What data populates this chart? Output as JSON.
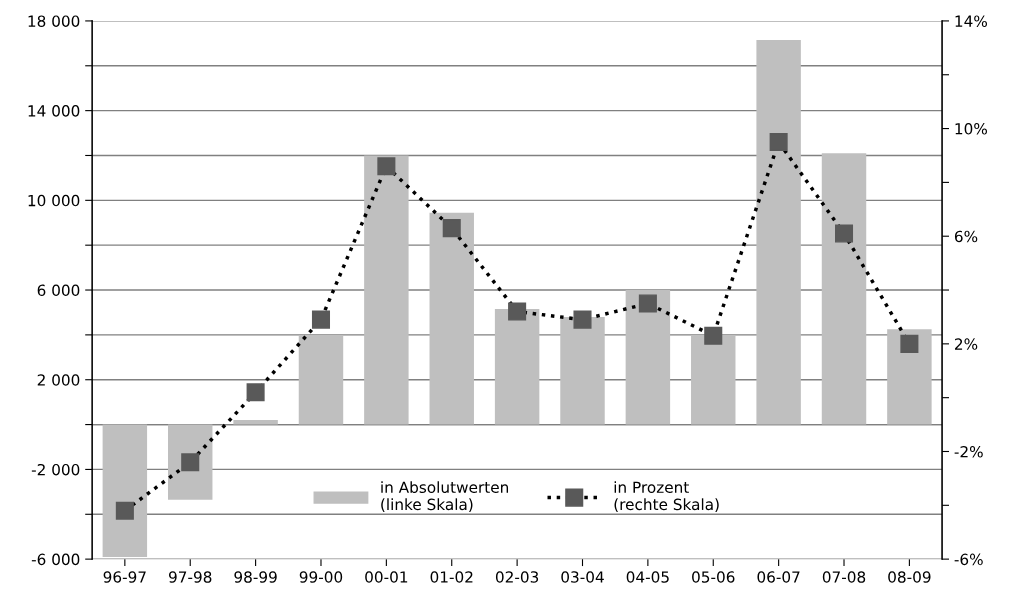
{
  "chart_data": {
    "type": "bar",
    "categories": [
      "96-97",
      "97-98",
      "98-99",
      "99-00",
      "00-01",
      "01-02",
      "02-03",
      "03-04",
      "04-05",
      "05-06",
      "06-07",
      "07-08",
      "08-09"
    ],
    "series": [
      {
        "name": "in Absolutwerten\n(linke Skala)",
        "color": "#bfbfbf",
        "values": [
          -5900,
          -3350,
          200,
          4000,
          12000,
          9450,
          5150,
          4800,
          6000,
          4000,
          17150,
          12100,
          4250
        ]
      },
      {
        "name": "in Prozent\n(rechte Skala)",
        "type": "line",
        "axis": "y2",
        "color": "#595959",
        "marker": "square",
        "line_style": "dotted",
        "values": [
          -4.2,
          -2.4,
          0.2,
          2.9,
          8.6,
          6.3,
          3.2,
          2.9,
          3.5,
          2.3,
          9.5,
          6.1,
          2.0
        ]
      }
    ],
    "ylim": [
      -6000,
      18000
    ],
    "yticks": [
      {
        "value": -6000,
        "label": "-6 000"
      },
      {
        "value": -4000,
        "label": null
      },
      {
        "value": -2000,
        "label": "-2 000"
      },
      {
        "value": 0,
        "label": null
      },
      {
        "value": 2000,
        "label": "2 000"
      },
      {
        "value": 4000,
        "label": null
      },
      {
        "value": 6000,
        "label": "6 000"
      },
      {
        "value": 8000,
        "label": null
      },
      {
        "value": 10000,
        "label": "10 000"
      },
      {
        "value": 12000,
        "label": null
      },
      {
        "value": 14000,
        "label": "14 000"
      },
      {
        "value": 16000,
        "label": null
      },
      {
        "value": 18000,
        "label": "18 000"
      }
    ],
    "y2lim": [
      -6,
      14
    ],
    "y2ticks": [
      {
        "value": -6,
        "label": "-6%"
      },
      {
        "value": -4,
        "label": null
      },
      {
        "value": -2,
        "label": "-2%"
      },
      {
        "value": 0,
        "label": null
      },
      {
        "value": 2,
        "label": "2%"
      },
      {
        "value": 4,
        "label": null
      },
      {
        "value": 6,
        "label": "6%"
      },
      {
        "value": 8,
        "label": null
      },
      {
        "value": 10,
        "label": "10%"
      },
      {
        "value": 12,
        "label": null
      },
      {
        "value": 14,
        "label": "14%"
      }
    ],
    "grid": "y",
    "legend": "bottom"
  }
}
